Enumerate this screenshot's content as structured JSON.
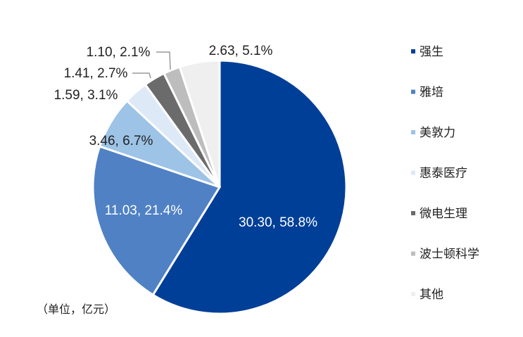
{
  "chart_data": {
    "type": "pie",
    "unit_note": "（单位，亿元）",
    "slices": [
      {
        "name": "强生",
        "value": 30.3,
        "percent": "58.8%",
        "label": "30.30, 58.8%",
        "color": "#003f98"
      },
      {
        "name": "雅培",
        "value": 11.03,
        "percent": "21.4%",
        "label": "11.03, 21.4%",
        "color": "#4f81c4"
      },
      {
        "name": "美敦力",
        "value": 3.46,
        "percent": "6.7%",
        "label": "3.46, 6.7%",
        "color": "#9dc3e6"
      },
      {
        "name": "惠泰医疗",
        "value": 1.59,
        "percent": "3.1%",
        "label": "1.59, 3.1%",
        "color": "#dde9f6"
      },
      {
        "name": "微电生理",
        "value": 1.41,
        "percent": "2.7%",
        "label": "1.41, 2.7%",
        "color": "#6b6b6b"
      },
      {
        "name": "波士顿科学",
        "value": 1.1,
        "percent": "2.1%",
        "label": "1.10, 2.1%",
        "color": "#bdbdbd"
      },
      {
        "name": "其他",
        "value": 2.63,
        "percent": "5.1%",
        "label": "2.63, 5.1%",
        "color": "#efefef"
      }
    ],
    "legend_position": "right"
  }
}
